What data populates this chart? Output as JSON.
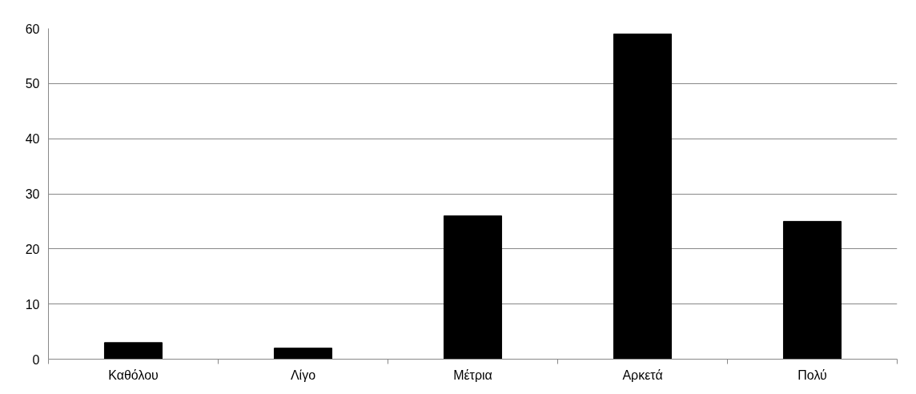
{
  "chart_data": {
    "type": "bar",
    "categories": [
      "Καθόλου",
      "Λίγο",
      "Μέτρια",
      "Αρκετά",
      "Πολύ"
    ],
    "values": [
      3,
      2,
      26,
      59,
      25
    ],
    "color": "#000000",
    "ylim": [
      0,
      60
    ],
    "yticks": [
      0,
      10,
      20,
      30,
      40,
      50,
      60
    ],
    "grid": "y"
  }
}
